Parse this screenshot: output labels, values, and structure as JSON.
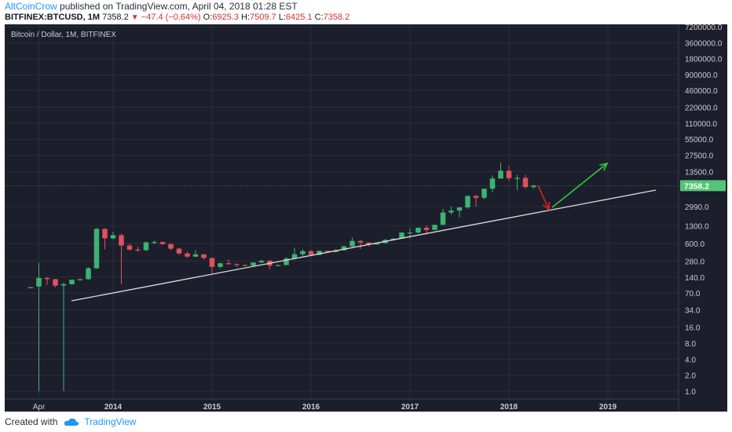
{
  "header": {
    "author": "AltCoinCrow",
    "published_text": " published on TradingView.com, April 04, 2018 01:28 EST"
  },
  "quote": {
    "symbol": "BITFINEX:BTCUSD",
    "interval": ", 1M",
    "last": "7358.2",
    "change": "−47.4 (−0.64%)",
    "o_label": "O:",
    "o": "6925.3",
    "h_label": "H:",
    "h": "7509.7",
    "l_label": "L:",
    "l": "6425.1",
    "c_label": "C:",
    "c": "7358.2"
  },
  "footer": {
    "created_with": "Created with",
    "brand": "TradingView"
  },
  "colors": {
    "background": "#1c1f2b",
    "up": "#3cb371",
    "down": "#e0505d",
    "trendline": "#dddddd",
    "arrow_down": "#e01e1e",
    "arrow_up": "#2ecc40",
    "price_tag": "#53c576"
  },
  "chart_data": {
    "type": "candlestick",
    "title": "Bitcoin / Dollar, 1M, BITFINEX",
    "y_scale": "log",
    "y_ticks": [
      "7200000.0",
      "3600000.0",
      "1800000.0",
      "900000.0",
      "460000.0",
      "220000.0",
      "110000.0",
      "55000.0",
      "27500.0",
      "13500.0",
      "2990.0",
      "1300.0",
      "600.0",
      "280.0",
      "140.0",
      "70.0",
      "34.0",
      "16.0",
      "8.0",
      "4.0",
      "2.0",
      "1.0"
    ],
    "x_ticks": [
      "Apr",
      "2014",
      "2015",
      "2016",
      "2017",
      "2018",
      "2019"
    ],
    "last_price_label": "7358.2",
    "candles": [
      {
        "month": "2013-03",
        "o": 90,
        "h": 92,
        "l": 88,
        "c": 90
      },
      {
        "month": "2013-04",
        "o": 93,
        "h": 260,
        "l": 1,
        "c": 135
      },
      {
        "month": "2013-05",
        "o": 135,
        "h": 140,
        "l": 100,
        "c": 128
      },
      {
        "month": "2013-06",
        "o": 128,
        "h": 130,
        "l": 90,
        "c": 97
      },
      {
        "month": "2013-07",
        "o": 97,
        "h": 110,
        "l": 1,
        "c": 103
      },
      {
        "month": "2013-08",
        "o": 103,
        "h": 125,
        "l": 100,
        "c": 125
      },
      {
        "month": "2013-09",
        "o": 125,
        "h": 130,
        "l": 120,
        "c": 128
      },
      {
        "month": "2013-10",
        "o": 128,
        "h": 215,
        "l": 125,
        "c": 205
      },
      {
        "month": "2013-11",
        "o": 205,
        "h": 1170,
        "l": 200,
        "c": 1130
      },
      {
        "month": "2013-12",
        "o": 1130,
        "h": 1150,
        "l": 470,
        "c": 750
      },
      {
        "month": "2014-01",
        "o": 750,
        "h": 1000,
        "l": 720,
        "c": 860
      },
      {
        "month": "2014-02",
        "o": 860,
        "h": 920,
        "l": 102,
        "c": 550
      },
      {
        "month": "2014-03",
        "o": 550,
        "h": 600,
        "l": 440,
        "c": 460
      },
      {
        "month": "2014-04",
        "o": 460,
        "h": 520,
        "l": 420,
        "c": 450
      },
      {
        "month": "2014-05",
        "o": 450,
        "h": 650,
        "l": 430,
        "c": 630
      },
      {
        "month": "2014-06",
        "o": 630,
        "h": 680,
        "l": 580,
        "c": 640
      },
      {
        "month": "2014-07",
        "o": 640,
        "h": 650,
        "l": 570,
        "c": 585
      },
      {
        "month": "2014-08",
        "o": 585,
        "h": 600,
        "l": 450,
        "c": 480
      },
      {
        "month": "2014-09",
        "o": 480,
        "h": 500,
        "l": 370,
        "c": 390
      },
      {
        "month": "2014-10",
        "o": 390,
        "h": 420,
        "l": 320,
        "c": 340
      },
      {
        "month": "2014-11",
        "o": 340,
        "h": 450,
        "l": 330,
        "c": 375
      },
      {
        "month": "2014-12",
        "o": 375,
        "h": 380,
        "l": 300,
        "c": 320
      },
      {
        "month": "2015-01",
        "o": 320,
        "h": 325,
        "l": 165,
        "c": 218
      },
      {
        "month": "2015-02",
        "o": 218,
        "h": 260,
        "l": 205,
        "c": 255
      },
      {
        "month": "2015-03",
        "o": 255,
        "h": 300,
        "l": 240,
        "c": 245
      },
      {
        "month": "2015-04",
        "o": 245,
        "h": 255,
        "l": 215,
        "c": 236
      },
      {
        "month": "2015-05",
        "o": 236,
        "h": 245,
        "l": 230,
        "c": 230
      },
      {
        "month": "2015-06",
        "o": 230,
        "h": 265,
        "l": 222,
        "c": 264
      },
      {
        "month": "2015-07",
        "o": 264,
        "h": 295,
        "l": 260,
        "c": 285
      },
      {
        "month": "2015-08",
        "o": 285,
        "h": 290,
        "l": 195,
        "c": 230
      },
      {
        "month": "2015-09",
        "o": 230,
        "h": 240,
        "l": 225,
        "c": 236
      },
      {
        "month": "2015-10",
        "o": 236,
        "h": 330,
        "l": 235,
        "c": 314
      },
      {
        "month": "2015-11",
        "o": 314,
        "h": 500,
        "l": 300,
        "c": 378
      },
      {
        "month": "2015-12",
        "o": 378,
        "h": 470,
        "l": 350,
        "c": 430
      },
      {
        "month": "2016-01",
        "o": 430,
        "h": 460,
        "l": 350,
        "c": 368
      },
      {
        "month": "2016-02",
        "o": 368,
        "h": 440,
        "l": 365,
        "c": 437
      },
      {
        "month": "2016-03",
        "o": 437,
        "h": 440,
        "l": 400,
        "c": 416
      },
      {
        "month": "2016-04",
        "o": 416,
        "h": 470,
        "l": 410,
        "c": 448
      },
      {
        "month": "2016-05",
        "o": 448,
        "h": 550,
        "l": 440,
        "c": 531
      },
      {
        "month": "2016-06",
        "o": 531,
        "h": 780,
        "l": 520,
        "c": 670
      },
      {
        "month": "2016-07",
        "o": 670,
        "h": 700,
        "l": 470,
        "c": 624
      },
      {
        "month": "2016-08",
        "o": 624,
        "h": 630,
        "l": 530,
        "c": 574
      },
      {
        "month": "2016-09",
        "o": 574,
        "h": 620,
        "l": 570,
        "c": 609
      },
      {
        "month": "2016-10",
        "o": 609,
        "h": 720,
        "l": 600,
        "c": 701
      },
      {
        "month": "2016-11",
        "o": 701,
        "h": 750,
        "l": 690,
        "c": 742
      },
      {
        "month": "2016-12",
        "o": 742,
        "h": 975,
        "l": 740,
        "c": 963
      },
      {
        "month": "2017-01",
        "o": 963,
        "h": 1150,
        "l": 750,
        "c": 965
      },
      {
        "month": "2017-02",
        "o": 965,
        "h": 1200,
        "l": 920,
        "c": 1190
      },
      {
        "month": "2017-03",
        "o": 1190,
        "h": 1300,
        "l": 890,
        "c": 1080
      },
      {
        "month": "2017-04",
        "o": 1080,
        "h": 1350,
        "l": 1070,
        "c": 1348
      },
      {
        "month": "2017-05",
        "o": 1348,
        "h": 2700,
        "l": 1340,
        "c": 2300
      },
      {
        "month": "2017-06",
        "o": 2300,
        "h": 3000,
        "l": 2100,
        "c": 2500
      },
      {
        "month": "2017-07",
        "o": 2500,
        "h": 2900,
        "l": 1850,
        "c": 2870
      },
      {
        "month": "2017-08",
        "o": 2870,
        "h": 4800,
        "l": 2700,
        "c": 4700
      },
      {
        "month": "2017-09",
        "o": 4700,
        "h": 5000,
        "l": 2950,
        "c": 4340
      },
      {
        "month": "2017-10",
        "o": 4340,
        "h": 6450,
        "l": 4100,
        "c": 6450
      },
      {
        "month": "2017-11",
        "o": 6450,
        "h": 11500,
        "l": 5500,
        "c": 10000
      },
      {
        "month": "2017-12",
        "o": 10000,
        "h": 19800,
        "l": 10000,
        "c": 14000
      },
      {
        "month": "2018-01",
        "o": 14000,
        "h": 17200,
        "l": 9000,
        "c": 10200
      },
      {
        "month": "2018-02",
        "o": 10200,
        "h": 11800,
        "l": 6000,
        "c": 10300
      },
      {
        "month": "2018-03",
        "o": 10300,
        "h": 11700,
        "l": 6500,
        "c": 6925
      },
      {
        "month": "2018-04",
        "o": 6925.3,
        "h": 7509.7,
        "l": 6425.1,
        "c": 7358.2
      }
    ]
  }
}
